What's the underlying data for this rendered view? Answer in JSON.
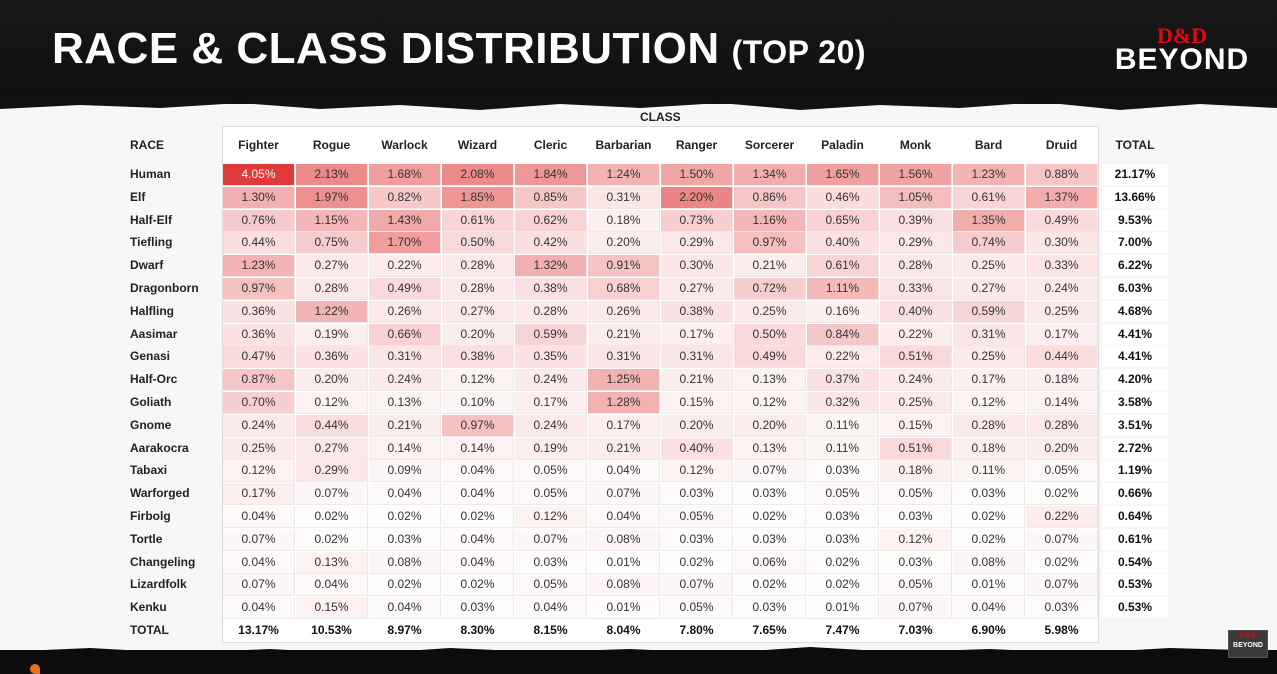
{
  "title": "RACE & CLASS DISTRIBUTION",
  "subtitle": "(TOP 20)",
  "logo": {
    "dd": "D&D",
    "beyond": "BEYOND"
  },
  "chart_data": {
    "type": "heatmap",
    "title": "RACE & CLASS DISTRIBUTION (TOP 20)",
    "xlabel": "CLASS",
    "ylabel": "RACE",
    "total_label": "TOTAL",
    "columns": [
      "Fighter",
      "Rogue",
      "Warlock",
      "Wizard",
      "Cleric",
      "Barbarian",
      "Ranger",
      "Sorcerer",
      "Paladin",
      "Monk",
      "Bard",
      "Druid"
    ],
    "rows": [
      "Human",
      "Elf",
      "Half-Elf",
      "Tiefling",
      "Dwarf",
      "Dragonborn",
      "Halfling",
      "Aasimar",
      "Genasi",
      "Half-Orc",
      "Goliath",
      "Gnome",
      "Aarakocra",
      "Tabaxi",
      "Warforged",
      "Firbolg",
      "Tortle",
      "Changeling",
      "Lizardfolk",
      "Kenku"
    ],
    "values": [
      [
        4.05,
        2.13,
        1.68,
        2.08,
        1.84,
        1.24,
        1.5,
        1.34,
        1.65,
        1.56,
        1.23,
        0.88
      ],
      [
        1.3,
        1.97,
        0.82,
        1.85,
        0.85,
        0.31,
        2.2,
        0.86,
        0.46,
        1.05,
        0.61,
        1.37
      ],
      [
        0.76,
        1.15,
        1.43,
        0.61,
        0.62,
        0.18,
        0.73,
        1.16,
        0.65,
        0.39,
        1.35,
        0.49
      ],
      [
        0.44,
        0.75,
        1.7,
        0.5,
        0.42,
        0.2,
        0.29,
        0.97,
        0.4,
        0.29,
        0.74,
        0.3
      ],
      [
        1.23,
        0.27,
        0.22,
        0.28,
        1.32,
        0.91,
        0.3,
        0.21,
        0.61,
        0.28,
        0.25,
        0.33
      ],
      [
        0.97,
        0.28,
        0.49,
        0.28,
        0.38,
        0.68,
        0.27,
        0.72,
        1.11,
        0.33,
        0.27,
        0.24
      ],
      [
        0.36,
        1.22,
        0.26,
        0.27,
        0.28,
        0.26,
        0.38,
        0.25,
        0.16,
        0.4,
        0.59,
        0.25
      ],
      [
        0.36,
        0.19,
        0.66,
        0.2,
        0.59,
        0.21,
        0.17,
        0.5,
        0.84,
        0.22,
        0.31,
        0.17
      ],
      [
        0.47,
        0.36,
        0.31,
        0.38,
        0.35,
        0.31,
        0.31,
        0.49,
        0.22,
        0.51,
        0.25,
        0.44
      ],
      [
        0.87,
        0.2,
        0.24,
        0.12,
        0.24,
        1.25,
        0.21,
        0.13,
        0.37,
        0.24,
        0.17,
        0.18
      ],
      [
        0.7,
        0.12,
        0.13,
        0.1,
        0.17,
        1.28,
        0.15,
        0.12,
        0.32,
        0.25,
        0.12,
        0.14
      ],
      [
        0.24,
        0.44,
        0.21,
        0.97,
        0.24,
        0.17,
        0.2,
        0.2,
        0.11,
        0.15,
        0.28,
        0.28
      ],
      [
        0.25,
        0.27,
        0.14,
        0.14,
        0.19,
        0.21,
        0.4,
        0.13,
        0.11,
        0.51,
        0.18,
        0.2
      ],
      [
        0.12,
        0.29,
        0.09,
        0.04,
        0.05,
        0.04,
        0.12,
        0.07,
        0.03,
        0.18,
        0.11,
        0.05
      ],
      [
        0.17,
        0.07,
        0.04,
        0.04,
        0.05,
        0.07,
        0.03,
        0.03,
        0.05,
        0.05,
        0.03,
        0.02
      ],
      [
        0.04,
        0.02,
        0.02,
        0.02,
        0.12,
        0.04,
        0.05,
        0.02,
        0.03,
        0.03,
        0.02,
        0.22
      ],
      [
        0.07,
        0.02,
        0.03,
        0.04,
        0.07,
        0.08,
        0.03,
        0.03,
        0.03,
        0.12,
        0.02,
        0.07
      ],
      [
        0.04,
        0.13,
        0.08,
        0.04,
        0.03,
        0.01,
        0.02,
        0.06,
        0.02,
        0.03,
        0.08,
        0.02
      ],
      [
        0.07,
        0.04,
        0.02,
        0.02,
        0.05,
        0.08,
        0.07,
        0.02,
        0.02,
        0.05,
        0.01,
        0.07
      ],
      [
        0.04,
        0.15,
        0.04,
        0.03,
        0.04,
        0.01,
        0.05,
        0.03,
        0.01,
        0.07,
        0.04,
        0.03
      ]
    ],
    "row_totals": [
      "21.17%",
      "13.66%",
      "9.53%",
      "7.00%",
      "6.22%",
      "6.03%",
      "4.68%",
      "4.41%",
      "4.41%",
      "4.20%",
      "3.58%",
      "3.51%",
      "2.72%",
      "1.19%",
      "0.66%",
      "0.64%",
      "0.61%",
      "0.54%",
      "0.53%",
      "0.53%"
    ],
    "column_totals": [
      "13.17%",
      "10.53%",
      "8.97%",
      "8.30%",
      "8.15%",
      "8.04%",
      "7.80%",
      "7.65%",
      "7.47%",
      "7.03%",
      "6.90%",
      "5.98%"
    ],
    "unit": "%",
    "colors": {
      "low": "#ffffff",
      "high": "#e03a3a"
    }
  }
}
